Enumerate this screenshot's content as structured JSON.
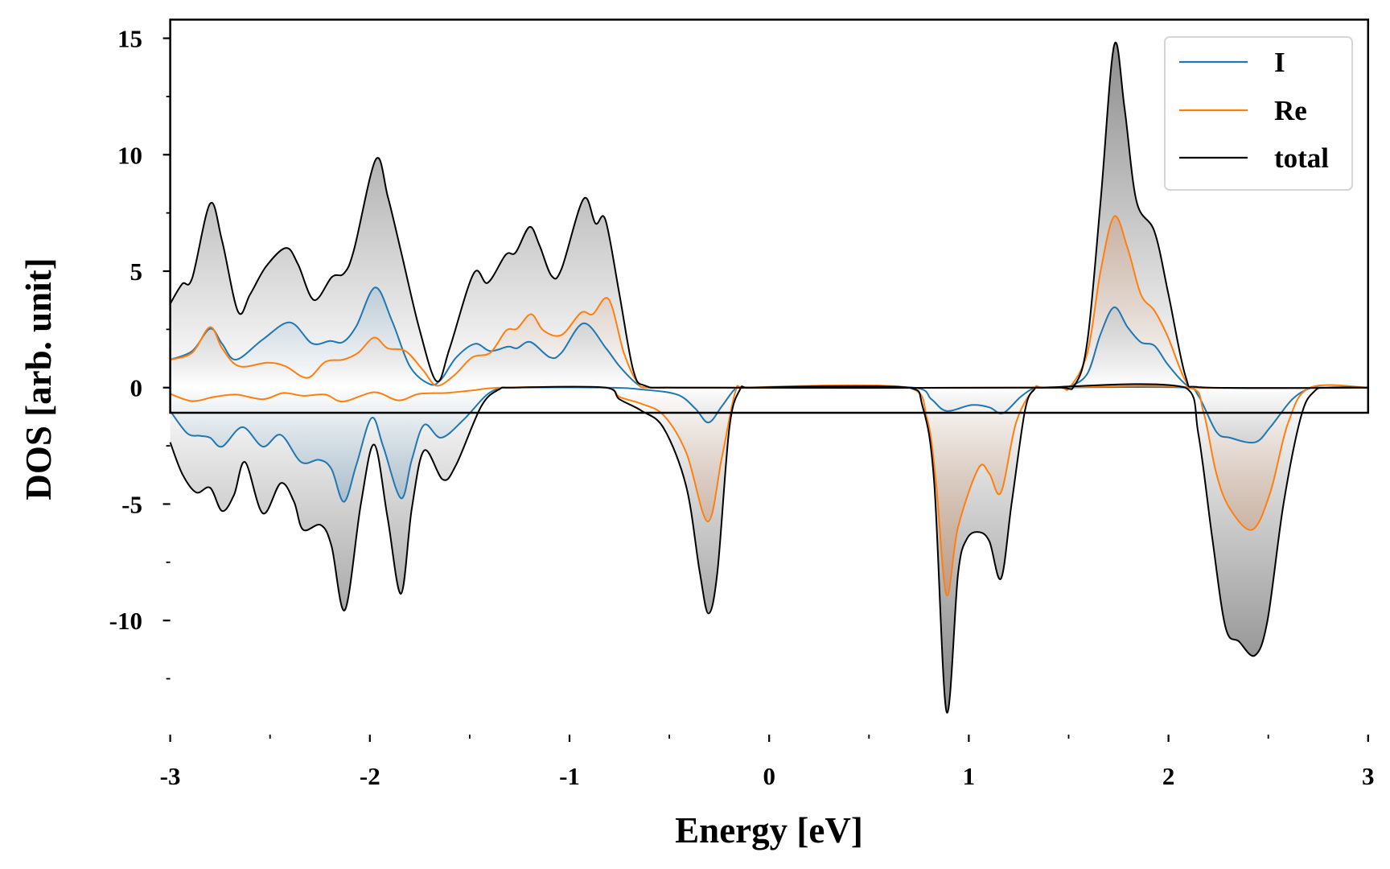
{
  "chart_data": {
    "type": "line",
    "title": "",
    "xlabel": "Energy [eV]",
    "ylabel": "DOS [arb. unit]",
    "xlim": [
      -3,
      3
    ],
    "ylim": [
      -14.9,
      15.8
    ],
    "grid": false,
    "legend_position": "top-right",
    "xticks": [
      -3,
      -2,
      -1,
      0,
      1,
      2,
      3
    ],
    "xtick_labels": [
      "-3",
      "-2",
      "-1",
      "0",
      "1",
      "2",
      "3"
    ],
    "xminor": [
      -2.5,
      -1.5,
      -0.5,
      0.5,
      1.5,
      2.5
    ],
    "yticks": [
      -10,
      -5,
      0,
      5,
      10,
      15
    ],
    "ytick_labels": [
      "-10",
      "-5",
      "0",
      "5",
      "10",
      "15"
    ],
    "yminor": [
      -12.5,
      -7.5,
      -2.5,
      2.5,
      7.5,
      12.5
    ],
    "series": [
      {
        "name": "total",
        "color": "#000000",
        "fill": "#808080",
        "up": [
          [
            -3,
            3.6
          ],
          [
            -2.94,
            4.45
          ],
          [
            -2.89,
            4.7
          ],
          [
            -2.8,
            7.9
          ],
          [
            -2.74,
            6.3
          ],
          [
            -2.66,
            3.26
          ],
          [
            -2.6,
            4.0
          ],
          [
            -2.52,
            5.2
          ],
          [
            -2.42,
            6.0
          ],
          [
            -2.36,
            5.3
          ],
          [
            -2.28,
            3.76
          ],
          [
            -2.19,
            4.75
          ],
          [
            -2.13,
            4.9
          ],
          [
            -2.08,
            5.9
          ],
          [
            -1.97,
            9.8
          ],
          [
            -1.91,
            8.2
          ],
          [
            -1.84,
            5.7
          ],
          [
            -1.75,
            2.45
          ],
          [
            -1.665,
            0.27
          ],
          [
            -1.6,
            1.7
          ],
          [
            -1.48,
            4.9
          ],
          [
            -1.41,
            4.5
          ],
          [
            -1.32,
            5.7
          ],
          [
            -1.27,
            5.8
          ],
          [
            -1.2,
            6.9
          ],
          [
            -1.15,
            6.1
          ],
          [
            -1.09,
            4.8
          ],
          [
            -1.04,
            5.1
          ],
          [
            -0.93,
            8.1
          ],
          [
            -0.87,
            7.05
          ],
          [
            -0.82,
            7.2
          ],
          [
            -0.75,
            4.0
          ],
          [
            -0.68,
            0.73
          ],
          [
            -0.62,
            0.08
          ],
          [
            -0.46,
            0
          ],
          [
            1.44,
            0
          ],
          [
            1.53,
            0.1
          ],
          [
            1.594,
            2
          ],
          [
            1.66,
            8
          ],
          [
            1.728,
            14.7
          ],
          [
            1.78,
            12
          ],
          [
            1.84,
            8
          ],
          [
            1.93,
            6.7
          ],
          [
            2.0,
            4
          ],
          [
            2.085,
            0.5
          ],
          [
            2.15,
            0.02
          ],
          [
            3,
            0
          ]
        ],
        "down": [
          [
            -3,
            -2.35
          ],
          [
            -2.94,
            -3.7
          ],
          [
            -2.87,
            -4.5
          ],
          [
            -2.8,
            -4.3
          ],
          [
            -2.74,
            -5.3
          ],
          [
            -2.68,
            -4.6
          ],
          [
            -2.625,
            -3.2
          ],
          [
            -2.536,
            -5.4
          ],
          [
            -2.446,
            -4.1
          ],
          [
            -2.38,
            -4.9
          ],
          [
            -2.335,
            -6.1
          ],
          [
            -2.246,
            -5.9
          ],
          [
            -2.192,
            -6.8
          ],
          [
            -2.125,
            -9.55
          ],
          [
            -2.045,
            -5.0
          ],
          [
            -1.978,
            -2.45
          ],
          [
            -1.911,
            -5.6
          ],
          [
            -1.844,
            -8.85
          ],
          [
            -1.79,
            -5.2
          ],
          [
            -1.728,
            -2.7
          ],
          [
            -1.634,
            -3.95
          ],
          [
            -1.567,
            -3.3
          ],
          [
            -1.442,
            -0.8
          ],
          [
            -1.353,
            -0.08
          ],
          [
            -1.286,
            0
          ],
          [
            -0.817,
            0
          ],
          [
            -0.75,
            -0.5
          ],
          [
            -0.638,
            -1.0
          ],
          [
            -0.527,
            -1.76
          ],
          [
            -0.415,
            -4.26
          ],
          [
            -0.348,
            -7.9
          ],
          [
            -0.304,
            -9.7
          ],
          [
            -0.259,
            -7.9
          ],
          [
            -0.2,
            -1.76
          ],
          [
            -0.147,
            -0.1
          ],
          [
            -0.103,
            0
          ],
          [
            0.7,
            0
          ],
          [
            0.768,
            -0.8
          ],
          [
            0.826,
            -4
          ],
          [
            0.888,
            -13.9
          ],
          [
            0.946,
            -8
          ],
          [
            0.99,
            -6.5
          ],
          [
            1.049,
            -6.2
          ],
          [
            1.103,
            -6.6
          ],
          [
            1.161,
            -8.2
          ],
          [
            1.214,
            -5
          ],
          [
            1.281,
            -1
          ],
          [
            1.326,
            -0.1
          ],
          [
            1.37,
            0
          ],
          [
            2.085,
            0
          ],
          [
            2.15,
            -2
          ],
          [
            2.22,
            -6.5
          ],
          [
            2.286,
            -10.3
          ],
          [
            2.353,
            -10.9
          ],
          [
            2.433,
            -11.5
          ],
          [
            2.496,
            -10
          ],
          [
            2.576,
            -5
          ],
          [
            2.665,
            -1.2
          ],
          [
            2.732,
            -0.15
          ],
          [
            2.8,
            0
          ],
          [
            3,
            0
          ]
        ]
      },
      {
        "name": "I",
        "color": "#1f77b4",
        "fill": "#1f77b4",
        "up": [
          [
            -3,
            1.2
          ],
          [
            -2.89,
            1.57
          ],
          [
            -2.8,
            2.53
          ],
          [
            -2.74,
            1.88
          ],
          [
            -2.67,
            1.2
          ],
          [
            -2.536,
            2.07
          ],
          [
            -2.4,
            2.8
          ],
          [
            -2.29,
            1.9
          ],
          [
            -2.2,
            2.0
          ],
          [
            -2.134,
            1.96
          ],
          [
            -2.067,
            2.65
          ],
          [
            -1.973,
            4.3
          ],
          [
            -1.888,
            2.84
          ],
          [
            -1.8,
            0.92
          ],
          [
            -1.7,
            0.15
          ],
          [
            -1.643,
            0.35
          ],
          [
            -1.567,
            1.3
          ],
          [
            -1.473,
            1.88
          ],
          [
            -1.397,
            1.57
          ],
          [
            -1.308,
            1.76
          ],
          [
            -1.263,
            1.69
          ],
          [
            -1.196,
            1.96
          ],
          [
            -1.098,
            1.3
          ],
          [
            -1.04,
            1.5
          ],
          [
            -0.929,
            2.76
          ],
          [
            -0.817,
            1.69
          ],
          [
            -0.75,
            0.92
          ],
          [
            -0.66,
            0.15
          ],
          [
            -0.594,
            0
          ],
          [
            1.45,
            0
          ],
          [
            1.504,
            0.05
          ],
          [
            1.594,
            0.6
          ],
          [
            1.66,
            2.3
          ],
          [
            1.728,
            3.45
          ],
          [
            1.795,
            2.6
          ],
          [
            1.862,
            1.95
          ],
          [
            1.93,
            1.8
          ],
          [
            1.996,
            1.0
          ],
          [
            2.085,
            0.15
          ],
          [
            2.15,
            0
          ],
          [
            3,
            0
          ]
        ],
        "down": [
          [
            -3,
            -1.0
          ],
          [
            -2.915,
            -1.96
          ],
          [
            -2.85,
            -2.07
          ],
          [
            -2.8,
            -2.15
          ],
          [
            -2.74,
            -2.53
          ],
          [
            -2.638,
            -1.7
          ],
          [
            -2.536,
            -2.53
          ],
          [
            -2.446,
            -2.03
          ],
          [
            -2.344,
            -3.2
          ],
          [
            -2.254,
            -3.1
          ],
          [
            -2.192,
            -3.5
          ],
          [
            -2.13,
            -4.9
          ],
          [
            -2.067,
            -3.3
          ],
          [
            -1.991,
            -1.3
          ],
          [
            -1.933,
            -2.53
          ],
          [
            -1.844,
            -4.75
          ],
          [
            -1.79,
            -3.1
          ],
          [
            -1.728,
            -1.6
          ],
          [
            -1.643,
            -2.15
          ],
          [
            -1.531,
            -1.38
          ],
          [
            -1.42,
            -0.35
          ],
          [
            -1.353,
            -0.04
          ],
          [
            -1.3,
            0
          ],
          [
            -0.817,
            0
          ],
          [
            -0.638,
            -0.08
          ],
          [
            -0.46,
            -0.3
          ],
          [
            -0.37,
            -0.9
          ],
          [
            -0.304,
            -1.5
          ],
          [
            -0.237,
            -0.8
          ],
          [
            -0.17,
            -0.05
          ],
          [
            -0.125,
            0
          ],
          [
            0.723,
            0
          ],
          [
            0.8125,
            -0.5
          ],
          [
            0.888,
            -1.0
          ],
          [
            1.013,
            -0.75
          ],
          [
            1.103,
            -0.85
          ],
          [
            1.17,
            -1.1
          ],
          [
            1.259,
            -0.4
          ],
          [
            1.326,
            -0.02
          ],
          [
            1.38,
            0
          ],
          [
            2.085,
            0
          ],
          [
            2.15,
            -0.35
          ],
          [
            2.24,
            -1.9
          ],
          [
            2.308,
            -2.15
          ],
          [
            2.433,
            -2.35
          ],
          [
            2.51,
            -1.7
          ],
          [
            2.62,
            -0.5
          ],
          [
            2.71,
            -0.02
          ],
          [
            2.78,
            0
          ],
          [
            3,
            0
          ]
        ]
      },
      {
        "name": "Re",
        "color": "#ff7f0e",
        "fill": "#d2814a",
        "up": [
          [
            -3,
            1.2
          ],
          [
            -2.89,
            1.5
          ],
          [
            -2.8,
            2.6
          ],
          [
            -2.74,
            1.69
          ],
          [
            -2.656,
            0.92
          ],
          [
            -2.513,
            1.07
          ],
          [
            -2.424,
            0.92
          ],
          [
            -2.313,
            0.42
          ],
          [
            -2.223,
            1.11
          ],
          [
            -2.134,
            1.2
          ],
          [
            -2.058,
            1.5
          ],
          [
            -1.978,
            2.15
          ],
          [
            -1.911,
            1.69
          ],
          [
            -1.821,
            1.57
          ],
          [
            -1.732,
            0.73
          ],
          [
            -1.665,
            0.08
          ],
          [
            -1.576,
            0.54
          ],
          [
            -1.487,
            1.3
          ],
          [
            -1.397,
            1.5
          ],
          [
            -1.317,
            2.45
          ],
          [
            -1.263,
            2.53
          ],
          [
            -1.192,
            3.15
          ],
          [
            -1.13,
            2.45
          ],
          [
            -1.04,
            2.26
          ],
          [
            -0.942,
            3.22
          ],
          [
            -0.884,
            3.15
          ],
          [
            -0.804,
            3.8
          ],
          [
            -0.728,
            1.5
          ],
          [
            -0.66,
            0.23
          ],
          [
            -0.594,
            0
          ],
          [
            1.45,
            0
          ],
          [
            1.504,
            0
          ],
          [
            1.594,
            1.5
          ],
          [
            1.66,
            5
          ],
          [
            1.728,
            7.35
          ],
          [
            1.795,
            6
          ],
          [
            1.862,
            4
          ],
          [
            1.93,
            3.3
          ],
          [
            1.996,
            2.2
          ],
          [
            2.085,
            0.3
          ],
          [
            2.15,
            0
          ],
          [
            3,
            0
          ]
        ],
        "down": [
          [
            -3,
            -0.27
          ],
          [
            -2.89,
            -0.58
          ],
          [
            -2.78,
            -0.4
          ],
          [
            -2.67,
            -0.3
          ],
          [
            -2.536,
            -0.5
          ],
          [
            -2.433,
            -0.23
          ],
          [
            -2.335,
            -0.35
          ],
          [
            -2.223,
            -0.3
          ],
          [
            -2.134,
            -0.6
          ],
          [
            -1.978,
            -0.2
          ],
          [
            -1.857,
            -0.55
          ],
          [
            -1.754,
            -0.27
          ],
          [
            -1.62,
            -0.23
          ],
          [
            -1.487,
            -0.12
          ],
          [
            -1.33,
            0
          ],
          [
            -0.817,
            0
          ],
          [
            -0.75,
            -0.4
          ],
          [
            -0.638,
            -0.7
          ],
          [
            -0.527,
            -1.2
          ],
          [
            -0.415,
            -2.8
          ],
          [
            -0.308,
            -5.75
          ],
          [
            -0.237,
            -3
          ],
          [
            -0.17,
            -0.2
          ],
          [
            -0.125,
            0
          ],
          [
            0.7,
            0
          ],
          [
            0.79,
            -1.3
          ],
          [
            0.835,
            -4
          ],
          [
            0.888,
            -8.9
          ],
          [
            0.946,
            -6
          ],
          [
            1.049,
            -3.45
          ],
          [
            1.103,
            -3.7
          ],
          [
            1.161,
            -4.5
          ],
          [
            1.237,
            -1.5
          ],
          [
            1.326,
            -0.05
          ],
          [
            1.38,
            0
          ],
          [
            2.107,
            0
          ],
          [
            2.174,
            -1
          ],
          [
            2.24,
            -3.7
          ],
          [
            2.308,
            -5.2
          ],
          [
            2.42,
            -6.1
          ],
          [
            2.51,
            -4.5
          ],
          [
            2.6,
            -1.5
          ],
          [
            2.71,
            0
          ],
          [
            3,
            0
          ]
        ]
      }
    ],
    "legend": [
      "I",
      "Re",
      "total"
    ]
  }
}
